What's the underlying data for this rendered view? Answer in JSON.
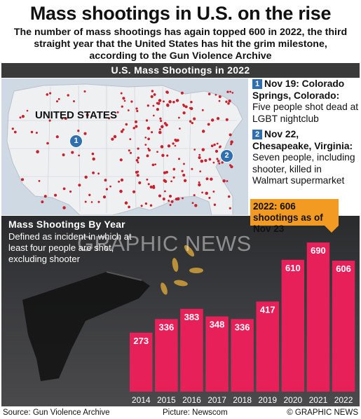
{
  "header": {
    "title": "Mass shootings in U.S. on the rise",
    "subtitle": "The number of mass shootings has again topped 600 in 2022, the third straight year that the United States has hit the grim milestone, according to the Gun Violence Archive"
  },
  "map": {
    "banner": "U.S. Mass Shootings in 2022",
    "country_label": "UNITED STATES",
    "marker_1": "1",
    "marker_2": "2",
    "dot_color": "#c8202c",
    "marker_color": "#2f6fb0"
  },
  "events": [
    {
      "num": "1",
      "date": "Nov 19: Colorado Springs, Colorado:",
      "desc": "Five people shot dead at LGBT nightclub"
    },
    {
      "num": "2",
      "date": "Nov 22, Chesapeake, Virginia:",
      "desc": "Seven people, including shooter, killed in Walmart supermarket"
    }
  ],
  "callout": {
    "text": "2022: 606 shootings as of Nov 23",
    "color": "#f29a21"
  },
  "chart_data": {
    "type": "bar",
    "title": "Mass Shootings By Year",
    "subtitle": "Defined as incident in which at least four people are shot, excluding shooter",
    "categories": [
      "2014",
      "2015",
      "2016",
      "2017",
      "2018",
      "2019",
      "2020",
      "2021",
      "2022"
    ],
    "values": [
      273,
      336,
      383,
      348,
      336,
      417,
      610,
      690,
      606
    ],
    "bar_color": "#e8205a",
    "ylim": [
      0,
      700
    ],
    "grid": false
  },
  "watermark": "GRAPHIC NEWS",
  "footer": {
    "source": "Source: Gun Violence Archive",
    "picture": "Picture: Newscom",
    "credit": "© GRAPHIC NEWS"
  }
}
